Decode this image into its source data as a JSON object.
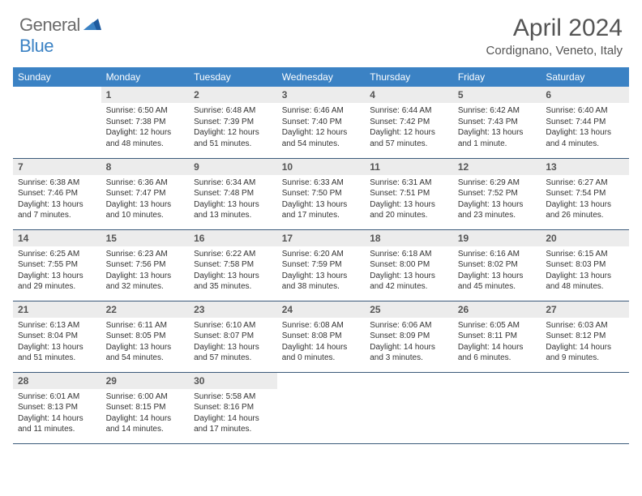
{
  "logo": {
    "general": "General",
    "blue": "Blue"
  },
  "title": "April 2024",
  "location": "Cordignano, Veneto, Italy",
  "colors": {
    "header_bg": "#3b82c4",
    "header_text": "#ffffff",
    "daynum_bg": "#ececec",
    "border": "#3b5a7a",
    "logo_gray": "#6b6b6b",
    "logo_blue": "#3b82c4"
  },
  "weekdays": [
    "Sunday",
    "Monday",
    "Tuesday",
    "Wednesday",
    "Thursday",
    "Friday",
    "Saturday"
  ],
  "weeks": [
    [
      null,
      {
        "n": "1",
        "sr": "Sunrise: 6:50 AM",
        "ss": "Sunset: 7:38 PM",
        "dl": "Daylight: 12 hours and 48 minutes."
      },
      {
        "n": "2",
        "sr": "Sunrise: 6:48 AM",
        "ss": "Sunset: 7:39 PM",
        "dl": "Daylight: 12 hours and 51 minutes."
      },
      {
        "n": "3",
        "sr": "Sunrise: 6:46 AM",
        "ss": "Sunset: 7:40 PM",
        "dl": "Daylight: 12 hours and 54 minutes."
      },
      {
        "n": "4",
        "sr": "Sunrise: 6:44 AM",
        "ss": "Sunset: 7:42 PM",
        "dl": "Daylight: 12 hours and 57 minutes."
      },
      {
        "n": "5",
        "sr": "Sunrise: 6:42 AM",
        "ss": "Sunset: 7:43 PM",
        "dl": "Daylight: 13 hours and 1 minute."
      },
      {
        "n": "6",
        "sr": "Sunrise: 6:40 AM",
        "ss": "Sunset: 7:44 PM",
        "dl": "Daylight: 13 hours and 4 minutes."
      }
    ],
    [
      {
        "n": "7",
        "sr": "Sunrise: 6:38 AM",
        "ss": "Sunset: 7:46 PM",
        "dl": "Daylight: 13 hours and 7 minutes."
      },
      {
        "n": "8",
        "sr": "Sunrise: 6:36 AM",
        "ss": "Sunset: 7:47 PM",
        "dl": "Daylight: 13 hours and 10 minutes."
      },
      {
        "n": "9",
        "sr": "Sunrise: 6:34 AM",
        "ss": "Sunset: 7:48 PM",
        "dl": "Daylight: 13 hours and 13 minutes."
      },
      {
        "n": "10",
        "sr": "Sunrise: 6:33 AM",
        "ss": "Sunset: 7:50 PM",
        "dl": "Daylight: 13 hours and 17 minutes."
      },
      {
        "n": "11",
        "sr": "Sunrise: 6:31 AM",
        "ss": "Sunset: 7:51 PM",
        "dl": "Daylight: 13 hours and 20 minutes."
      },
      {
        "n": "12",
        "sr": "Sunrise: 6:29 AM",
        "ss": "Sunset: 7:52 PM",
        "dl": "Daylight: 13 hours and 23 minutes."
      },
      {
        "n": "13",
        "sr": "Sunrise: 6:27 AM",
        "ss": "Sunset: 7:54 PM",
        "dl": "Daylight: 13 hours and 26 minutes."
      }
    ],
    [
      {
        "n": "14",
        "sr": "Sunrise: 6:25 AM",
        "ss": "Sunset: 7:55 PM",
        "dl": "Daylight: 13 hours and 29 minutes."
      },
      {
        "n": "15",
        "sr": "Sunrise: 6:23 AM",
        "ss": "Sunset: 7:56 PM",
        "dl": "Daylight: 13 hours and 32 minutes."
      },
      {
        "n": "16",
        "sr": "Sunrise: 6:22 AM",
        "ss": "Sunset: 7:58 PM",
        "dl": "Daylight: 13 hours and 35 minutes."
      },
      {
        "n": "17",
        "sr": "Sunrise: 6:20 AM",
        "ss": "Sunset: 7:59 PM",
        "dl": "Daylight: 13 hours and 38 minutes."
      },
      {
        "n": "18",
        "sr": "Sunrise: 6:18 AM",
        "ss": "Sunset: 8:00 PM",
        "dl": "Daylight: 13 hours and 42 minutes."
      },
      {
        "n": "19",
        "sr": "Sunrise: 6:16 AM",
        "ss": "Sunset: 8:02 PM",
        "dl": "Daylight: 13 hours and 45 minutes."
      },
      {
        "n": "20",
        "sr": "Sunrise: 6:15 AM",
        "ss": "Sunset: 8:03 PM",
        "dl": "Daylight: 13 hours and 48 minutes."
      }
    ],
    [
      {
        "n": "21",
        "sr": "Sunrise: 6:13 AM",
        "ss": "Sunset: 8:04 PM",
        "dl": "Daylight: 13 hours and 51 minutes."
      },
      {
        "n": "22",
        "sr": "Sunrise: 6:11 AM",
        "ss": "Sunset: 8:05 PM",
        "dl": "Daylight: 13 hours and 54 minutes."
      },
      {
        "n": "23",
        "sr": "Sunrise: 6:10 AM",
        "ss": "Sunset: 8:07 PM",
        "dl": "Daylight: 13 hours and 57 minutes."
      },
      {
        "n": "24",
        "sr": "Sunrise: 6:08 AM",
        "ss": "Sunset: 8:08 PM",
        "dl": "Daylight: 14 hours and 0 minutes."
      },
      {
        "n": "25",
        "sr": "Sunrise: 6:06 AM",
        "ss": "Sunset: 8:09 PM",
        "dl": "Daylight: 14 hours and 3 minutes."
      },
      {
        "n": "26",
        "sr": "Sunrise: 6:05 AM",
        "ss": "Sunset: 8:11 PM",
        "dl": "Daylight: 14 hours and 6 minutes."
      },
      {
        "n": "27",
        "sr": "Sunrise: 6:03 AM",
        "ss": "Sunset: 8:12 PM",
        "dl": "Daylight: 14 hours and 9 minutes."
      }
    ],
    [
      {
        "n": "28",
        "sr": "Sunrise: 6:01 AM",
        "ss": "Sunset: 8:13 PM",
        "dl": "Daylight: 14 hours and 11 minutes."
      },
      {
        "n": "29",
        "sr": "Sunrise: 6:00 AM",
        "ss": "Sunset: 8:15 PM",
        "dl": "Daylight: 14 hours and 14 minutes."
      },
      {
        "n": "30",
        "sr": "Sunrise: 5:58 AM",
        "ss": "Sunset: 8:16 PM",
        "dl": "Daylight: 14 hours and 17 minutes."
      },
      null,
      null,
      null,
      null
    ]
  ]
}
